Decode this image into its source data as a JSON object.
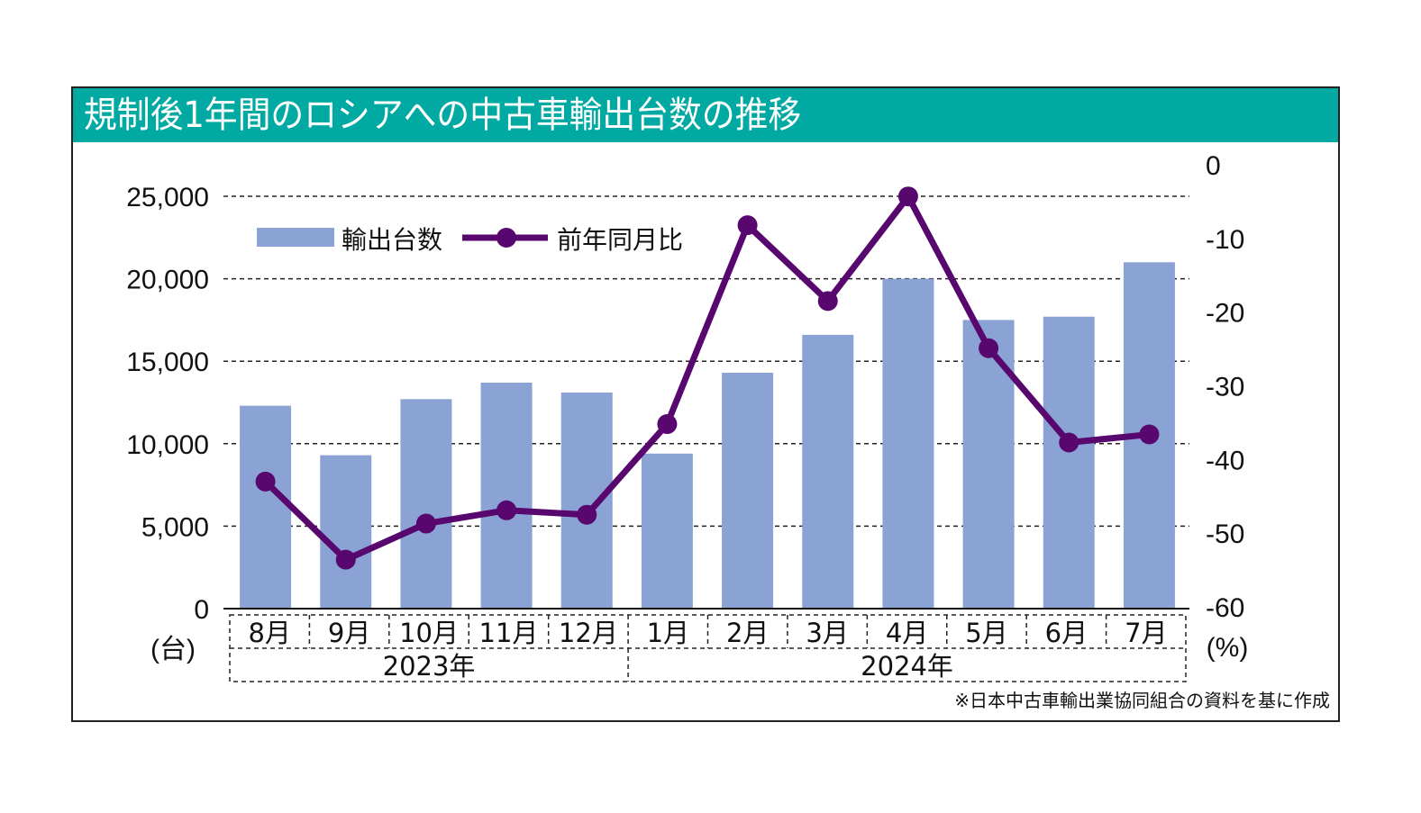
{
  "title": "規制後1年間のロシアへの中古車輸出台数の推移",
  "colors": {
    "title_band": "#00A9A2",
    "bars": "#8BA3D4",
    "line": "#58076E",
    "grid": "#222222"
  },
  "source_note": "※日本中古車輸出業協同組合の資料を基に作成",
  "chart_data": {
    "type": "bar",
    "title": "規制後1年間のロシアへの中古車輸出台数の推移",
    "categories": [
      "8月",
      "9月",
      "10月",
      "11月",
      "12月",
      "1月",
      "2月",
      "3月",
      "4月",
      "5月",
      "6月",
      "7月"
    ],
    "year_groups": [
      {
        "label": "2023年",
        "span": 5
      },
      {
        "label": "2024年",
        "span": 7
      }
    ],
    "series": [
      {
        "name": "輸出台数",
        "type": "bar",
        "axis": "left",
        "values": [
          12300,
          9300,
          12700,
          13700,
          13100,
          9400,
          14300,
          16600,
          20000,
          17500,
          17700,
          21000
        ]
      },
      {
        "name": "前年同月比",
        "type": "line",
        "axis": "right",
        "values": [
          -43.0,
          -53.6,
          -48.7,
          -46.9,
          -47.5,
          -35.2,
          -8.2,
          -18.5,
          -4.3,
          -24.9,
          -37.7,
          -36.6
        ]
      }
    ],
    "left_axis": {
      "label": "(台)",
      "ylim": [
        0,
        25000
      ],
      "ticks": [
        0,
        5000,
        10000,
        15000,
        20000,
        25000
      ],
      "tick_labels": [
        "0",
        "5,000",
        "10,000",
        "15,000",
        "20,000",
        "25,000"
      ]
    },
    "right_axis": {
      "label": "(%)",
      "ylim": [
        -60,
        0
      ],
      "ticks": [
        0,
        -10,
        -20,
        -30,
        -40,
        -50,
        -60
      ],
      "tick_labels": [
        "0",
        "-10",
        "-20",
        "-30",
        "-40",
        "-50",
        "-60"
      ]
    },
    "grid": "horizontal dashed at left-axis ticks",
    "legend": {
      "position": "top-left",
      "entries": [
        "輸出台数",
        "前年同月比"
      ]
    }
  }
}
